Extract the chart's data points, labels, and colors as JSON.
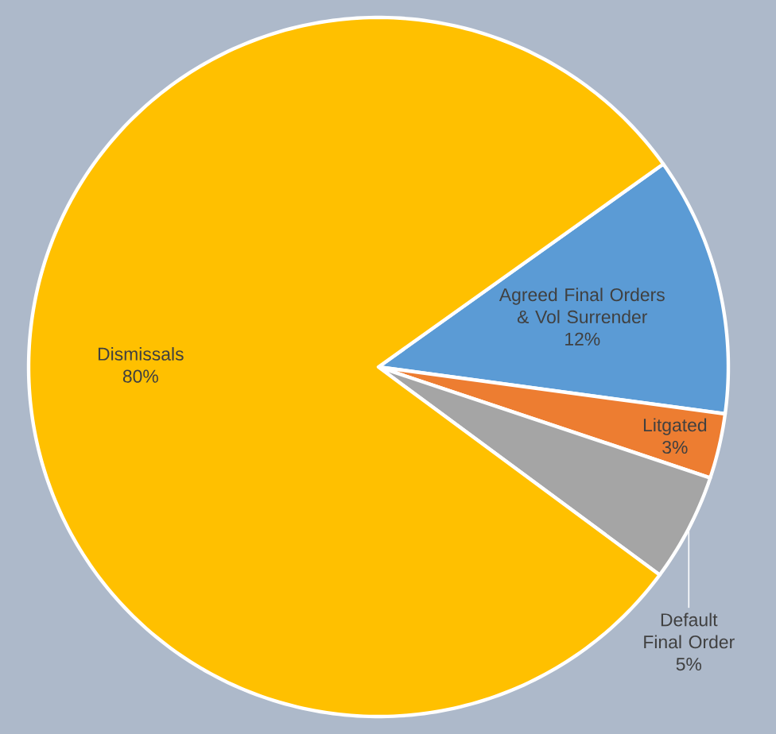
{
  "chart_data": {
    "type": "pie",
    "categories": [
      "Agreed Final Orders & Vol Surrender",
      "Litgated",
      "Default Final Order",
      "Dismissals"
    ],
    "values": [
      12,
      3,
      5,
      80
    ],
    "value_labels": [
      "12%",
      "3%",
      "5%",
      "80%"
    ],
    "colors": [
      "#5b9bd5",
      "#ed7d31",
      "#a5a5a5",
      "#ffc000"
    ]
  }
}
